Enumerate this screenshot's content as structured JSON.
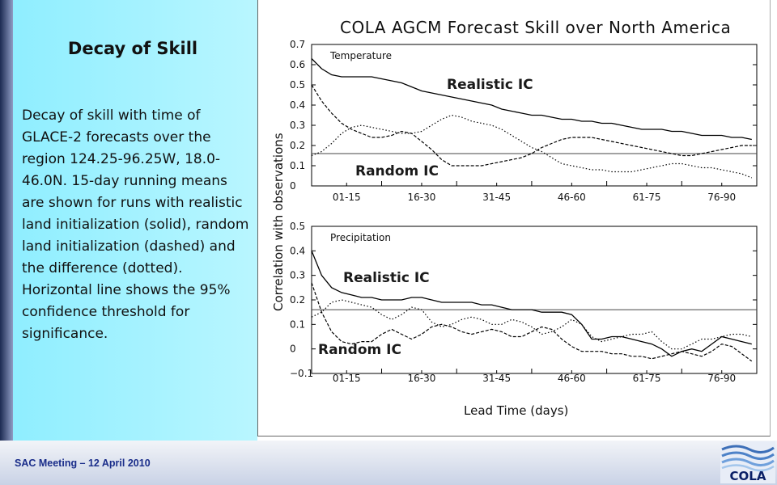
{
  "slide": {
    "title": "Decay of Skill",
    "body": "Decay of skill with time of GLACE-2 forecasts over the region 124.25-96.25W, 18.0-46.0N. 15-day running means are shown for runs with realistic land initialization (solid), random land initialization (dashed) and the difference (dotted). Horizontal line shows the 95% confidence threshold for significance.",
    "footer": "SAC Meeting – 12 April 2010",
    "logo_text": "COLA"
  },
  "colors": {
    "left_strip": "#1c2a52",
    "text_panel": "#a8f3ff",
    "footer_text": "#1a2d8a",
    "curve": "#000000",
    "annotation": "#1a1a1a"
  },
  "chart_data": {
    "type": "line",
    "title": "COLA AGCM Forecast Skill over North America",
    "xlabel": "Lead Time (days)",
    "ylabel": "Correlation with observations",
    "x_tick_labels": [
      "01-15",
      "16-30",
      "31-45",
      "46-60",
      "61-75",
      "76-90"
    ],
    "x": [
      1,
      3,
      5,
      7,
      9,
      11,
      13,
      15,
      17,
      19,
      21,
      23,
      25,
      27,
      29,
      31,
      33,
      35,
      37,
      39,
      41,
      43,
      45,
      47,
      49,
      51,
      53,
      55,
      57,
      59,
      61,
      63,
      65,
      67,
      69,
      71,
      73,
      75,
      77,
      79,
      81,
      83,
      85,
      87,
      89
    ],
    "panels": [
      {
        "name": "Temperature",
        "ylim": [
          0,
          0.7
        ],
        "yticks": [
          0,
          0.1,
          0.2,
          0.3,
          0.4,
          0.5,
          0.6,
          0.7
        ],
        "y_tick_labels": [
          "0",
          "0.1",
          "0.2",
          "0.3",
          "0.4",
          "0.5",
          "0.6",
          "0.7"
        ],
        "threshold": 0.16,
        "annotations": [
          "Realistic IC",
          "Random IC"
        ],
        "series": [
          {
            "style": "solid",
            "values": [
              0.63,
              0.58,
              0.55,
              0.54,
              0.54,
              0.54,
              0.54,
              0.53,
              0.52,
              0.51,
              0.49,
              0.47,
              0.46,
              0.45,
              0.44,
              0.43,
              0.42,
              0.41,
              0.4,
              0.38,
              0.37,
              0.36,
              0.35,
              0.35,
              0.34,
              0.33,
              0.33,
              0.32,
              0.32,
              0.31,
              0.31,
              0.3,
              0.29,
              0.28,
              0.28,
              0.28,
              0.27,
              0.27,
              0.26,
              0.25,
              0.25,
              0.25,
              0.24,
              0.24,
              0.23
            ]
          },
          {
            "style": "dashed",
            "values": [
              0.5,
              0.42,
              0.36,
              0.31,
              0.28,
              0.26,
              0.24,
              0.24,
              0.25,
              0.27,
              0.26,
              0.22,
              0.18,
              0.13,
              0.1,
              0.1,
              0.1,
              0.1,
              0.11,
              0.12,
              0.13,
              0.14,
              0.16,
              0.19,
              0.21,
              0.23,
              0.24,
              0.24,
              0.24,
              0.23,
              0.22,
              0.21,
              0.2,
              0.19,
              0.18,
              0.17,
              0.16,
              0.15,
              0.15,
              0.16,
              0.17,
              0.18,
              0.19,
              0.2,
              0.2
            ]
          },
          {
            "style": "dotted",
            "values": [
              0.15,
              0.17,
              0.21,
              0.26,
              0.29,
              0.3,
              0.29,
              0.28,
              0.27,
              0.26,
              0.26,
              0.27,
              0.3,
              0.33,
              0.35,
              0.34,
              0.32,
              0.31,
              0.3,
              0.28,
              0.25,
              0.22,
              0.19,
              0.17,
              0.14,
              0.11,
              0.1,
              0.09,
              0.08,
              0.08,
              0.07,
              0.07,
              0.07,
              0.08,
              0.09,
              0.1,
              0.11,
              0.11,
              0.1,
              0.09,
              0.09,
              0.08,
              0.07,
              0.06,
              0.04
            ]
          }
        ]
      },
      {
        "name": "Precipitation",
        "ylim": [
          -0.1,
          0.5
        ],
        "yticks": [
          -0.1,
          0,
          0.1,
          0.2,
          0.3,
          0.4,
          0.5
        ],
        "y_tick_labels": [
          "−0.1",
          "0",
          "0.1",
          "0.2",
          "0.3",
          "0.4",
          "0.5"
        ],
        "threshold": 0.16,
        "annotations": [
          "Realistic IC",
          "Random IC"
        ],
        "series": [
          {
            "style": "solid",
            "values": [
              0.4,
              0.3,
              0.25,
              0.23,
              0.22,
              0.21,
              0.21,
              0.2,
              0.2,
              0.2,
              0.21,
              0.21,
              0.2,
              0.19,
              0.19,
              0.19,
              0.19,
              0.18,
              0.18,
              0.17,
              0.16,
              0.16,
              0.16,
              0.15,
              0.15,
              0.15,
              0.14,
              0.1,
              0.04,
              0.04,
              0.05,
              0.05,
              0.04,
              0.03,
              0.02,
              0.0,
              -0.03,
              -0.01,
              0.0,
              -0.01,
              0.02,
              0.05,
              0.04,
              0.03,
              0.02
            ]
          },
          {
            "style": "dashed",
            "values": [
              0.27,
              0.15,
              0.07,
              0.03,
              0.02,
              0.03,
              0.03,
              0.06,
              0.08,
              0.06,
              0.04,
              0.06,
              0.09,
              0.1,
              0.09,
              0.07,
              0.06,
              0.07,
              0.08,
              0.07,
              0.05,
              0.05,
              0.07,
              0.09,
              0.08,
              0.04,
              0.01,
              -0.01,
              -0.01,
              -0.01,
              -0.02,
              -0.02,
              -0.03,
              -0.03,
              -0.04,
              -0.03,
              -0.02,
              -0.01,
              -0.02,
              -0.03,
              -0.01,
              0.02,
              0.01,
              -0.02,
              -0.05
            ]
          },
          {
            "style": "dotted",
            "values": [
              0.13,
              0.15,
              0.19,
              0.2,
              0.19,
              0.18,
              0.17,
              0.14,
              0.12,
              0.14,
              0.17,
              0.16,
              0.11,
              0.09,
              0.1,
              0.12,
              0.13,
              0.12,
              0.1,
              0.1,
              0.12,
              0.11,
              0.09,
              0.06,
              0.07,
              0.09,
              0.12,
              0.1,
              0.05,
              0.03,
              0.04,
              0.05,
              0.06,
              0.06,
              0.07,
              0.03,
              0.0,
              0.0,
              0.02,
              0.04,
              0.04,
              0.05,
              0.06,
              0.06,
              0.05
            ]
          }
        ]
      }
    ]
  }
}
